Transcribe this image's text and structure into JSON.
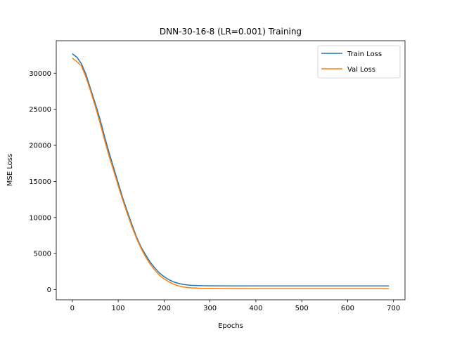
{
  "chart_data": {
    "type": "line",
    "title": "DNN-30-16-8 (LR=0.001) Training",
    "xlabel": "Epochs",
    "ylabel": "MSE Loss",
    "xlim": [
      -35,
      725
    ],
    "ylim": [
      -1400,
      34500
    ],
    "xticks": [
      0,
      100,
      200,
      300,
      400,
      500,
      600,
      700
    ],
    "yticks": [
      0,
      5000,
      10000,
      15000,
      20000,
      25000,
      30000
    ],
    "grid": false,
    "legend_position": "upper right",
    "series": [
      {
        "name": "Train Loss",
        "color": "#1f77b4",
        "x": [
          0,
          10,
          20,
          30,
          40,
          50,
          60,
          70,
          80,
          90,
          100,
          110,
          120,
          130,
          140,
          150,
          160,
          170,
          180,
          190,
          200,
          210,
          220,
          230,
          240,
          250,
          260,
          280,
          300,
          350,
          400,
          450,
          500,
          550,
          600,
          650,
          690
        ],
        "y": [
          32700,
          32200,
          31300,
          29800,
          27800,
          25800,
          23700,
          21300,
          19000,
          16900,
          14800,
          12700,
          10800,
          9000,
          7300,
          5900,
          4800,
          3800,
          3000,
          2300,
          1800,
          1400,
          1100,
          900,
          750,
          650,
          600,
          560,
          540,
          530,
          530,
          520,
          520,
          520,
          520,
          520,
          520
        ]
      },
      {
        "name": "Val Loss",
        "color": "#ff7f0e",
        "x": [
          0,
          10,
          20,
          30,
          40,
          50,
          60,
          70,
          80,
          90,
          100,
          110,
          120,
          130,
          140,
          150,
          160,
          170,
          180,
          190,
          200,
          210,
          220,
          230,
          240,
          250,
          260,
          280,
          300,
          350,
          400,
          450,
          500,
          550,
          600,
          650,
          690
        ],
        "y": [
          32100,
          31600,
          31000,
          29400,
          27500,
          25400,
          23200,
          20800,
          18500,
          16500,
          14400,
          12400,
          10500,
          8700,
          7100,
          5700,
          4500,
          3500,
          2700,
          2000,
          1500,
          1100,
          800,
          550,
          400,
          300,
          250,
          200,
          180,
          160,
          150,
          150,
          150,
          150,
          150,
          150,
          150
        ]
      }
    ]
  }
}
